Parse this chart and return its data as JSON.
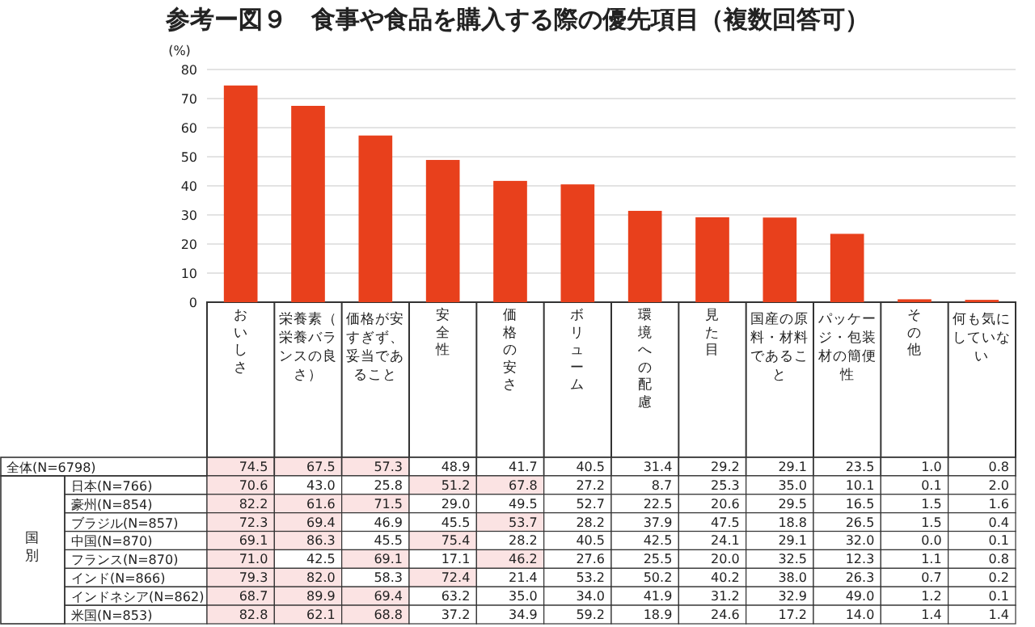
{
  "chart_data": [
    {
      "type": "bar",
      "title": "参考ー図９　食事や食品を購入する際の優先項目（複数回答可）",
      "ylabel": "(%)",
      "categories": [
        "おいしさ",
        "栄養素（栄養バランスの良さ）",
        "価格が安すぎず、妥当であること",
        "安全性",
        "価格の安さ",
        "ボリューム",
        "環境への配慮",
        "見た目",
        "国産の原料・材料であること",
        "パッケージ・包装材の簡便性",
        "その他",
        "何も気にしていない"
      ],
      "series": [
        {
          "name": "全体(N=6798)",
          "color": "#e8401c",
          "values": [
            74.5,
            67.5,
            57.3,
            48.9,
            41.7,
            40.5,
            31.4,
            29.2,
            29.1,
            23.5,
            1.0,
            0.8
          ],
          "value_labels": [
            "74.5",
            "67.5",
            "57.3",
            "48.9",
            "41.7",
            "40.5",
            "31.4",
            "29.2",
            "29.1",
            "23.5",
            "1.0",
            "0.8"
          ]
        }
      ],
      "ylim": [
        0,
        80
      ],
      "yticks": [
        0,
        10,
        20,
        30,
        40,
        50,
        60,
        70,
        80
      ],
      "grid": "y"
    },
    {
      "type": "heatmap",
      "categories": [
        null,
        null,
        null,
        null,
        null,
        null,
        null,
        null,
        null,
        null,
        null,
        null
      ],
      "y_categories": [
        "日本(N=766)",
        "豪州(N=854)",
        "ブラジル(N=857)",
        "中国(N=870)",
        "フランス(N=870)",
        "インド(N=866)",
        "インドネシア(N=862)",
        "米国(N=853)"
      ],
      "cells": [
        [
          70.6,
          43.0,
          25.8,
          51.2,
          67.8,
          27.2,
          8.7,
          25.3,
          35.0,
          10.1,
          0.1,
          2.0
        ],
        [
          82.2,
          61.6,
          71.5,
          29.0,
          49.5,
          52.7,
          22.5,
          20.6,
          29.5,
          16.5,
          1.5,
          1.6
        ],
        [
          72.3,
          69.4,
          46.9,
          45.5,
          53.7,
          28.2,
          37.9,
          47.5,
          18.8,
          26.5,
          1.5,
          0.4
        ],
        [
          69.1,
          86.3,
          45.5,
          75.4,
          28.2,
          40.5,
          42.5,
          24.1,
          29.1,
          32.0,
          0.0,
          0.1
        ],
        [
          71.0,
          42.5,
          69.1,
          17.1,
          46.2,
          27.6,
          25.5,
          20.0,
          32.5,
          12.3,
          1.1,
          0.8
        ],
        [
          79.3,
          82.0,
          58.3,
          72.4,
          21.4,
          53.2,
          50.2,
          40.2,
          38.0,
          26.3,
          0.7,
          0.2
        ],
        [
          68.7,
          89.9,
          69.4,
          63.2,
          35.0,
          34.0,
          41.9,
          31.2,
          32.9,
          49.0,
          1.2,
          0.1
        ],
        [
          82.8,
          62.1,
          68.8,
          37.2,
          34.9,
          59.2,
          18.9,
          24.6,
          17.2,
          14.0,
          1.4,
          1.4
        ]
      ],
      "cell_labels": [
        [
          "70.6",
          "43.0",
          "25.8",
          "51.2",
          "67.8",
          "27.2",
          "8.7",
          "25.3",
          "35.0",
          "10.1",
          "0.1",
          "2.0"
        ],
        [
          "82.2",
          "61.6",
          "71.5",
          "29.0",
          "49.5",
          "52.7",
          "22.5",
          "20.6",
          "29.5",
          "16.5",
          "1.5",
          "1.6"
        ],
        [
          "72.3",
          "69.4",
          "46.9",
          "45.5",
          "53.7",
          "28.2",
          "37.9",
          "47.5",
          "18.8",
          "26.5",
          "1.5",
          "0.4"
        ],
        [
          "69.1",
          "86.3",
          "45.5",
          "75.4",
          "28.2",
          "40.5",
          "42.5",
          "24.1",
          "29.1",
          "32.0",
          "0.0",
          "0.1"
        ],
        [
          "71.0",
          "42.5",
          "69.1",
          "17.1",
          "46.2",
          "27.6",
          "25.5",
          "20.0",
          "32.5",
          "12.3",
          "1.1",
          "0.8"
        ],
        [
          "79.3",
          "82.0",
          "58.3",
          "72.4",
          "21.4",
          "53.2",
          "50.2",
          "40.2",
          "38.0",
          "26.3",
          "0.7",
          "0.2"
        ],
        [
          "68.7",
          "89.9",
          "69.4",
          "63.2",
          "35.0",
          "34.0",
          "41.9",
          "31.2",
          "32.9",
          "49.0",
          "1.2",
          "0.1"
        ],
        [
          "82.8",
          "62.1",
          "68.8",
          "37.2",
          "34.9",
          "59.2",
          "18.9",
          "24.6",
          "17.2",
          "14.0",
          "1.4",
          "1.4"
        ]
      ],
      "annotations": [
        "国別"
      ]
    }
  ]
}
